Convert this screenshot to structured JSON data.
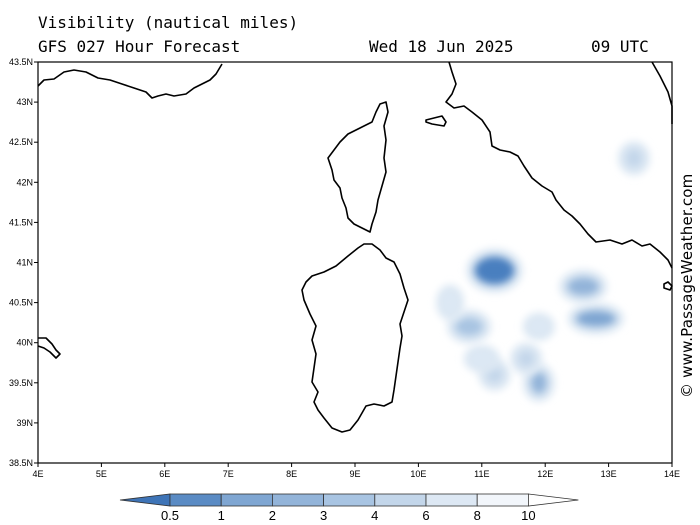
{
  "header": {
    "title": "Visibility (nautical miles)",
    "subtitle": "GFS 027 Hour Forecast",
    "date": "Wed 18 Jun 2025",
    "time": "09 UTC"
  },
  "credit": "© www.PassageWeather.com",
  "map": {
    "lon_range": [
      4,
      14
    ],
    "lat_range": [
      38.5,
      43.5
    ],
    "lon_ticks": [
      "4E",
      "5E",
      "6E",
      "7E",
      "8E",
      "9E",
      "10E",
      "11E",
      "12E",
      "13E",
      "14E"
    ],
    "lat_ticks": [
      "43.5N",
      "43N",
      "42.5N",
      "42N",
      "41.5N",
      "41N",
      "40.5N",
      "40N",
      "39.5N",
      "39N",
      "38.5N"
    ],
    "coast_color": "#000000",
    "patches": [
      {
        "lon": 11.2,
        "lat": 40.9,
        "level": "0.5",
        "color": "#4a7fbf"
      },
      {
        "lon": 10.8,
        "lat": 40.2,
        "level": "4",
        "color": "#a8c4e2"
      },
      {
        "lon": 12.8,
        "lat": 40.3,
        "level": "2",
        "color": "#7fa6d2"
      },
      {
        "lon": 12.6,
        "lat": 40.7,
        "level": "3",
        "color": "#93b4d9"
      },
      {
        "lon": 13.4,
        "lat": 42.3,
        "level": "6",
        "color": "#c3d6ea"
      },
      {
        "lon": 11.9,
        "lat": 39.5,
        "level": "3",
        "color": "#93b4d9"
      },
      {
        "lon": 11.7,
        "lat": 39.8,
        "level": "6",
        "color": "#c3d6ea"
      },
      {
        "lon": 11.2,
        "lat": 39.6,
        "level": "6",
        "color": "#c3d6ea"
      },
      {
        "lon": 10.5,
        "lat": 40.5,
        "level": "8",
        "color": "#dde8f4"
      },
      {
        "lon": 11.0,
        "lat": 39.8,
        "level": "8",
        "color": "#dde8f4"
      },
      {
        "lon": 11.9,
        "lat": 40.2,
        "level": "8",
        "color": "#dde8f4"
      }
    ]
  },
  "legend": {
    "labels": [
      "0.5",
      "1",
      "2",
      "3",
      "4",
      "6",
      "8",
      "10"
    ],
    "colors": [
      "#3e74b7",
      "#5a8bc4",
      "#7fa6d2",
      "#93b4d9",
      "#a8c4e2",
      "#c3d6ea",
      "#dde8f4",
      "#f2f6fb",
      "#ffffff"
    ]
  }
}
